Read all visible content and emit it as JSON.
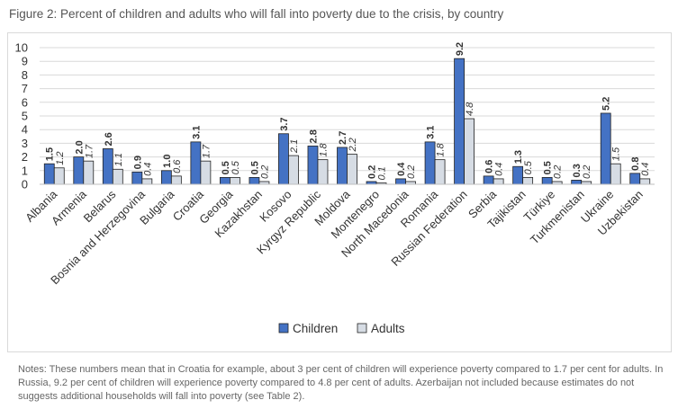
{
  "title": "Figure 2: Percent of children and adults who will fall into poverty due to the crisis, by country",
  "chart_data": {
    "type": "bar",
    "title": "",
    "xlabel": "",
    "ylabel": "",
    "ylim": [
      0,
      10
    ],
    "yticks": [
      0,
      1,
      2,
      3,
      4,
      5,
      6,
      7,
      8,
      9,
      10
    ],
    "grid": true,
    "legend_position": "bottom",
    "categories": [
      "Albania",
      "Armenia",
      "Belarus",
      "Bosnia and Herzegovina",
      "Bulgaria",
      "Croatia",
      "Georgia",
      "Kazakhstan",
      "Kosovo",
      "Kyrgyz Republic",
      "Moldova",
      "Montenegro",
      "North Macedonia",
      "Romania",
      "Russian Federation",
      "Serbia",
      "Tajikistan",
      "Türkiye",
      "Turkmenistan",
      "Ukraine",
      "Uzbekistan"
    ],
    "series": [
      {
        "name": "Children",
        "color": "#4472c4",
        "values": [
          1.5,
          2.0,
          2.6,
          0.9,
          1.0,
          3.1,
          0.5,
          0.5,
          3.7,
          2.8,
          2.7,
          0.2,
          0.4,
          3.1,
          9.2,
          0.6,
          1.3,
          0.5,
          0.3,
          5.2,
          0.8
        ]
      },
      {
        "name": "Adults",
        "color": "#d6dce4",
        "values": [
          1.2,
          1.7,
          1.1,
          0.4,
          0.6,
          1.7,
          0.5,
          0.2,
          2.1,
          1.8,
          2.2,
          0.1,
          0.2,
          1.8,
          4.8,
          0.4,
          0.5,
          0.2,
          0.2,
          1.5,
          0.4
        ]
      }
    ]
  },
  "notes": "Notes: These numbers mean that in Croatia for example, about 3 per cent of children will experience poverty compared to 1.7 per cent for adults. In Russia, 9.2 per cent of children will experience poverty compared to 4.8 per cent of adults. Azerbaijan not included because estimates do not suggests additional households will fall into poverty (see Table 2)."
}
